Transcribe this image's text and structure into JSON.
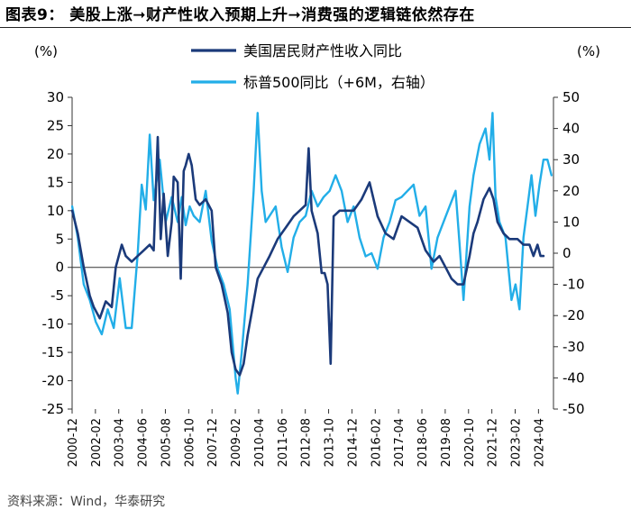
{
  "figure": {
    "title": "图表9：  美股上涨➞财产性收入预期上升➞消费强的逻辑链依然存在",
    "source": "资料来源：Wind，华泰研究"
  },
  "chart_data": {
    "type": "line",
    "left_unit": "(%)",
    "right_unit": "(%)",
    "left_ylim": [
      -25,
      30
    ],
    "right_ylim": [
      -50,
      50
    ],
    "left_ticks": [
      -25,
      -20,
      -15,
      -10,
      -5,
      0,
      5,
      10,
      15,
      20,
      25,
      30
    ],
    "right_ticks": [
      -50,
      -40,
      -30,
      -20,
      -10,
      0,
      10,
      20,
      30,
      40,
      50
    ],
    "xlim": [
      2000.917,
      2025.0
    ],
    "x_tick_labels": [
      "2000-12",
      "2002-02",
      "2003-04",
      "2004-06",
      "2005-08",
      "2006-10",
      "2007-12",
      "2009-02",
      "2010-04",
      "2011-06",
      "2012-08",
      "2013-10",
      "2014-12",
      "2016-02",
      "2017-04",
      "2018-06",
      "2019-08",
      "2020-10",
      "2021-12",
      "2023-02",
      "2024-04"
    ],
    "x_tick_values": [
      2000.917,
      2002.083,
      2003.25,
      2004.417,
      2005.583,
      2006.75,
      2007.917,
      2009.083,
      2010.25,
      2011.417,
      2012.583,
      2013.75,
      2014.917,
      2016.083,
      2017.25,
      2018.417,
      2019.583,
      2020.75,
      2021.917,
      2023.083,
      2024.25
    ],
    "series": [
      {
        "name": "美国居民财产性收入同比",
        "axis": "left",
        "color": "#1b3a7a",
        "x": [
          2000.92,
          2001.2,
          2001.5,
          2001.8,
          2002.0,
          2002.3,
          2002.6,
          2002.9,
          2003.1,
          2003.4,
          2003.6,
          2003.9,
          2004.2,
          2004.5,
          2004.8,
          2005.0,
          2005.2,
          2005.35,
          2005.5,
          2005.7,
          2005.9,
          2006.0,
          2006.2,
          2006.35,
          2006.5,
          2006.6,
          2006.75,
          2006.9,
          2007.1,
          2007.3,
          2007.6,
          2007.9,
          2008.1,
          2008.4,
          2008.7,
          2008.9,
          2009.1,
          2009.3,
          2009.5,
          2009.7,
          2009.9,
          2010.2,
          2010.5,
          2010.8,
          2011.2,
          2011.6,
          2012.0,
          2012.3,
          2012.6,
          2012.75,
          2012.9,
          2013.2,
          2013.4,
          2013.55,
          2013.7,
          2013.85,
          2014.0,
          2014.3,
          2014.6,
          2015.0,
          2015.4,
          2015.8,
          2016.2,
          2016.6,
          2017.0,
          2017.4,
          2017.8,
          2018.2,
          2018.6,
          2019.0,
          2019.3,
          2019.6,
          2019.9,
          2020.2,
          2020.5,
          2020.8,
          2021.0,
          2021.2,
          2021.5,
          2021.8,
          2022.0,
          2022.2,
          2022.5,
          2022.8,
          2023.2,
          2023.5,
          2023.8,
          2024.0,
          2024.2,
          2024.35,
          2024.5
        ],
        "y": [
          10,
          6,
          0,
          -5,
          -7,
          -9,
          -6,
          -7,
          0,
          4,
          2,
          1,
          2,
          3,
          4,
          3,
          23,
          5,
          13,
          2,
          8,
          16,
          15,
          -2,
          17,
          18,
          20,
          18,
          12,
          11,
          12,
          10,
          0,
          -3,
          -8,
          -15,
          -18,
          -19,
          -17,
          -12,
          -8,
          -2,
          0,
          2,
          5,
          7,
          9,
          10,
          11,
          21,
          10,
          6,
          -1,
          -1,
          -3,
          -17,
          9,
          10,
          10,
          10,
          12,
          15,
          9,
          6,
          5,
          9,
          8,
          7,
          3,
          1,
          2,
          0,
          -2,
          -3,
          -3,
          2,
          6,
          8,
          12,
          14,
          12,
          8,
          6,
          5,
          5,
          4,
          4,
          2,
          4,
          2,
          2
        ]
      },
      {
        "name": "标普500同比（+6M，右轴）",
        "axis": "right",
        "color": "#22aee8",
        "x": [
          2000.92,
          2001.2,
          2001.5,
          2001.8,
          2002.1,
          2002.4,
          2002.7,
          2003.0,
          2003.3,
          2003.6,
          2003.9,
          2004.2,
          2004.4,
          2004.6,
          2004.8,
          2005.0,
          2005.3,
          2005.6,
          2005.9,
          2006.2,
          2006.4,
          2006.6,
          2006.8,
          2007.0,
          2007.3,
          2007.6,
          2007.9,
          2008.2,
          2008.5,
          2008.8,
          2009.1,
          2009.2,
          2009.4,
          2009.7,
          2010.0,
          2010.2,
          2010.4,
          2010.6,
          2010.8,
          2011.1,
          2011.4,
          2011.7,
          2012.0,
          2012.3,
          2012.6,
          2012.9,
          2013.2,
          2013.5,
          2013.8,
          2014.1,
          2014.4,
          2014.7,
          2015.0,
          2015.3,
          2015.6,
          2015.9,
          2016.2,
          2016.5,
          2016.8,
          2017.1,
          2017.4,
          2017.7,
          2018.0,
          2018.3,
          2018.6,
          2018.9,
          2019.2,
          2019.5,
          2019.8,
          2020.1,
          2020.3,
          2020.5,
          2020.8,
          2021.0,
          2021.3,
          2021.6,
          2021.8,
          2021.95,
          2022.1,
          2022.3,
          2022.6,
          2022.9,
          2023.1,
          2023.3,
          2023.5,
          2023.7,
          2023.9,
          2024.1,
          2024.3,
          2024.5,
          2024.7,
          2024.9
        ],
        "y": [
          15,
          5,
          -10,
          -15,
          -22,
          -26,
          -18,
          -24,
          -8,
          -24,
          -24,
          0,
          22,
          14,
          38,
          17,
          30,
          10,
          18,
          10,
          18,
          9,
          15,
          12,
          10,
          20,
          4,
          -5,
          -10,
          -18,
          -40,
          -45,
          -32,
          -10,
          20,
          45,
          20,
          10,
          12,
          15,
          2,
          -6,
          5,
          10,
          12,
          20,
          15,
          18,
          20,
          25,
          20,
          10,
          15,
          5,
          -1,
          0,
          -5,
          5,
          10,
          17,
          18,
          20,
          22,
          12,
          15,
          -5,
          5,
          10,
          15,
          20,
          3,
          -15,
          15,
          25,
          35,
          40,
          30,
          45,
          18,
          10,
          5,
          -15,
          -10,
          -18,
          5,
          15,
          25,
          12,
          22,
          30,
          30,
          25
        ]
      }
    ]
  }
}
